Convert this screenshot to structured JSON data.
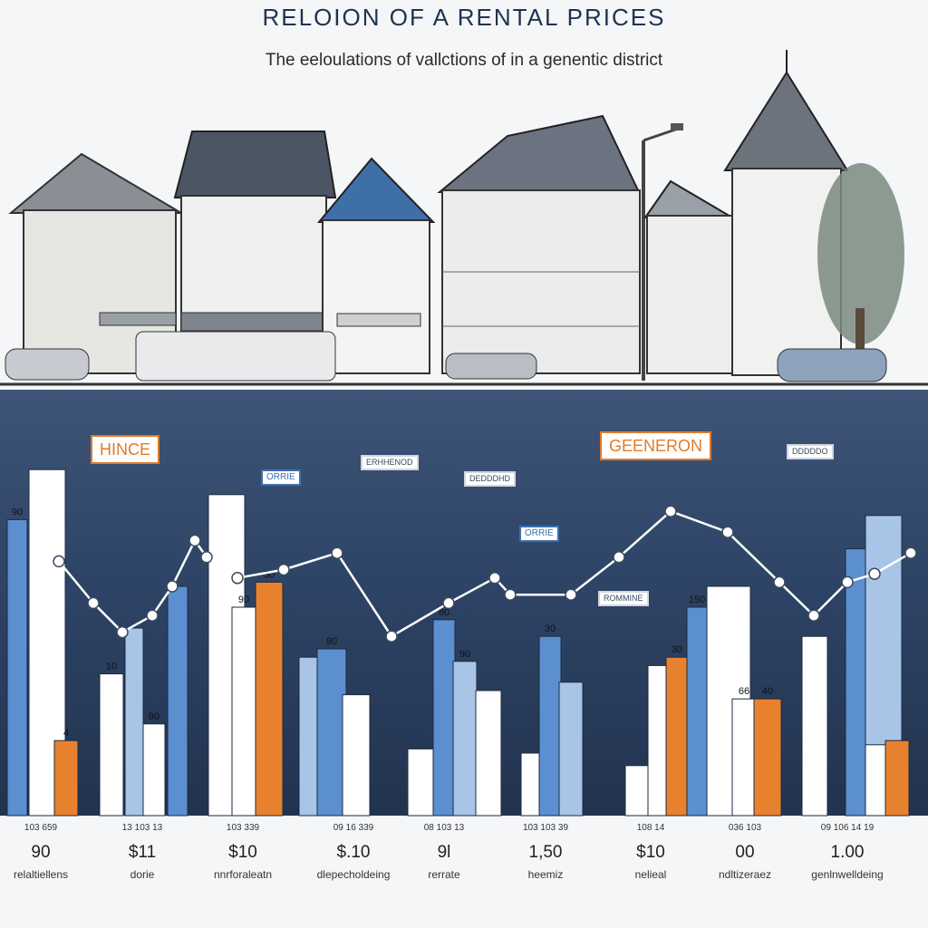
{
  "header": {
    "title": "RELOION OF A RENTAL PRICES",
    "subtitle": "The eeloulations of vallctions of in a genentic district"
  },
  "callouts": [
    {
      "text": "HINCE",
      "style": "orange"
    },
    {
      "text": "GEENERON",
      "style": "orange"
    },
    {
      "text": "ORRIE",
      "style": "blue"
    },
    {
      "text": "ORRIE",
      "style": "blue"
    },
    {
      "text": "ERHHENOD",
      "style": "plain"
    },
    {
      "text": "DEDDDHD",
      "style": "plain"
    },
    {
      "text": "ROMMINE",
      "style": "plain"
    },
    {
      "text": "DDDDDO",
      "style": "plain"
    }
  ],
  "chart_data": {
    "type": "bar",
    "title": "RELOION OF A RENTAL PRICES",
    "subtitle": "The eeloulations of vallctions of in a genentic district",
    "categories": [
      "relaltiellens",
      "dorie",
      "nnrforaleatn",
      "dlepecholdeing",
      "rerrate",
      "heemiz",
      "nelieal",
      "ndltizeraez",
      "genlnwelldeing"
    ],
    "value_labels": [
      "90",
      "$11",
      "$10",
      "$.10",
      "9l",
      "1,50",
      "$10",
      "00",
      "1.00"
    ],
    "tick_labels": [
      "103 659",
      "13 103 13",
      "103 339",
      "09 16 339",
      "08 103 13",
      "103 103 39",
      "108 14",
      "036 103",
      "09 106 14 19"
    ],
    "bar_labels": [
      "90",
      "",
      "4",
      "10",
      "",
      "90",
      "",
      "",
      "90",
      "30",
      "",
      "90",
      "",
      "",
      "80",
      "90",
      "",
      "",
      "30",
      "",
      "",
      "",
      "30",
      "150",
      "",
      "66",
      "40"
    ],
    "bars": [
      {
        "x": 8,
        "w": 22,
        "value": 71,
        "color": "#5b8fd0"
      },
      {
        "x": 32,
        "w": 40,
        "value": 83,
        "color": "#ffffff"
      },
      {
        "x": 60,
        "w": 26,
        "value": 18,
        "color": "#e8812e"
      },
      {
        "x": 110,
        "w": 26,
        "value": 34,
        "color": "#ffffff"
      },
      {
        "x": 138,
        "w": 20,
        "value": 45,
        "color": "#a8c4e6"
      },
      {
        "x": 158,
        "w": 24,
        "value": 22,
        "color": "#ffffff"
      },
      {
        "x": 185,
        "w": 22,
        "value": 55,
        "color": "#5b8fd0"
      },
      {
        "x": 230,
        "w": 40,
        "value": 77,
        "color": "#ffffff"
      },
      {
        "x": 256,
        "w": 26,
        "value": 50,
        "color": "#ffffff"
      },
      {
        "x": 282,
        "w": 30,
        "value": 56,
        "color": "#e8812e"
      },
      {
        "x": 330,
        "w": 26,
        "value": 38,
        "color": "#a8c4e6"
      },
      {
        "x": 350,
        "w": 32,
        "value": 40,
        "color": "#5b8fd0"
      },
      {
        "x": 378,
        "w": 30,
        "value": 29,
        "color": "#ffffff"
      },
      {
        "x": 450,
        "w": 28,
        "value": 16,
        "color": "#ffffff"
      },
      {
        "x": 478,
        "w": 24,
        "value": 47,
        "color": "#5b8fd0"
      },
      {
        "x": 500,
        "w": 26,
        "value": 37,
        "color": "#a8c4e6"
      },
      {
        "x": 525,
        "w": 28,
        "value": 30,
        "color": "#ffffff"
      },
      {
        "x": 575,
        "w": 24,
        "value": 15,
        "color": "#ffffff"
      },
      {
        "x": 595,
        "w": 24,
        "value": 43,
        "color": "#5b8fd0"
      },
      {
        "x": 617,
        "w": 26,
        "value": 32,
        "color": "#a8c4e6"
      },
      {
        "x": 690,
        "w": 28,
        "value": 12,
        "color": "#ffffff"
      },
      {
        "x": 715,
        "w": 24,
        "value": 36,
        "color": "#ffffff"
      },
      {
        "x": 735,
        "w": 24,
        "value": 38,
        "color": "#e8812e"
      },
      {
        "x": 758,
        "w": 22,
        "value": 50,
        "color": "#5b8fd0"
      },
      {
        "x": 780,
        "w": 48,
        "value": 55,
        "color": "#ffffff"
      },
      {
        "x": 808,
        "w": 26,
        "value": 28,
        "color": "#ffffff"
      },
      {
        "x": 832,
        "w": 30,
        "value": 28,
        "color": "#e8812e"
      },
      {
        "x": 885,
        "w": 28,
        "value": 43,
        "color": "#ffffff"
      },
      {
        "x": 933,
        "w": 22,
        "value": 64,
        "color": "#5b8fd0"
      },
      {
        "x": 955,
        "w": 40,
        "value": 72,
        "color": "#a8c4e6"
      },
      {
        "x": 955,
        "w": 24,
        "value": 17,
        "color": "#ffffff"
      },
      {
        "x": 977,
        "w": 26,
        "value": 18,
        "color": "#e8812e"
      }
    ],
    "line_points": [
      {
        "x": 65,
        "y": 61
      },
      {
        "x": 103,
        "y": 51
      },
      {
        "x": 135,
        "y": 44
      },
      {
        "x": 168,
        "y": 48
      },
      {
        "x": 190,
        "y": 55
      },
      {
        "x": 215,
        "y": 66
      },
      {
        "x": 228,
        "y": 62
      },
      {
        "x": 262,
        "y": 57
      },
      {
        "x": 313,
        "y": 59
      },
      {
        "x": 372,
        "y": 63
      },
      {
        "x": 432,
        "y": 43
      },
      {
        "x": 495,
        "y": 51
      },
      {
        "x": 546,
        "y": 57
      },
      {
        "x": 563,
        "y": 53
      },
      {
        "x": 630,
        "y": 53
      },
      {
        "x": 683,
        "y": 62
      },
      {
        "x": 740,
        "y": 73
      },
      {
        "x": 803,
        "y": 68
      },
      {
        "x": 860,
        "y": 56
      },
      {
        "x": 898,
        "y": 48
      },
      {
        "x": 935,
        "y": 56
      },
      {
        "x": 965,
        "y": 58
      },
      {
        "x": 1005,
        "y": 63
      }
    ],
    "ylim": [
      0,
      100
    ],
    "grid": false,
    "legend": "none"
  },
  "colors": {
    "panel_top": "#3e5578",
    "panel_bottom": "#22334f",
    "bar_blue": "#5b8fd0",
    "bar_light_blue": "#a8c4e6",
    "bar_white": "#ffffff",
    "bar_orange": "#e8812e",
    "line": "#ffffff",
    "accent_orange": "#e07a2a"
  }
}
